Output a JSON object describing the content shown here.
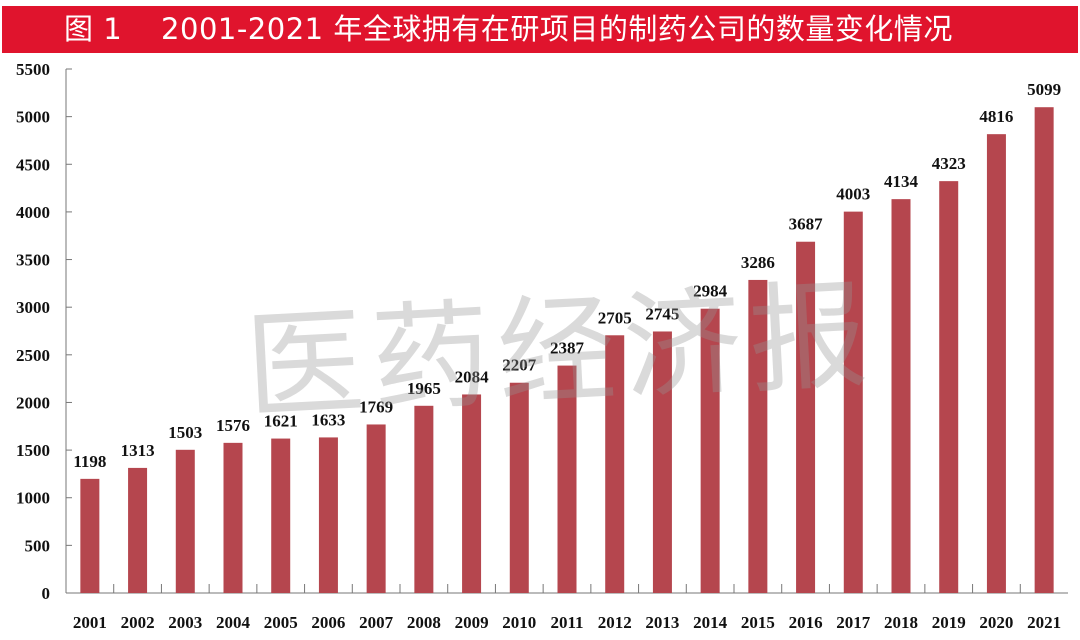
{
  "title": "图 1    2001-2021 年全球拥有在研项目的制药公司的数量变化情况",
  "watermark": "医药经济报",
  "chart_data": {
    "type": "bar",
    "title": "图 1    2001-2021 年全球拥有在研项目的制药公司的数量变化情况",
    "xlabel": "",
    "ylabel": "",
    "categories": [
      "2001",
      "2002",
      "2003",
      "2004",
      "2005",
      "2006",
      "2007",
      "2008",
      "2009",
      "2010",
      "2011",
      "2012",
      "2013",
      "2014",
      "2015",
      "2016",
      "2017",
      "2018",
      "2019",
      "2020",
      "2021"
    ],
    "values": [
      1198,
      1313,
      1503,
      1576,
      1621,
      1633,
      1769,
      1965,
      2084,
      2207,
      2387,
      2705,
      2745,
      2984,
      3286,
      3687,
      4003,
      4134,
      4323,
      4816,
      5099
    ],
    "ylim": [
      0,
      5500
    ],
    "yticks": [
      0,
      500,
      1000,
      1500,
      2000,
      2500,
      3000,
      3500,
      4000,
      4500,
      5000,
      5500
    ],
    "grid": false,
    "bar_color": "#b5464e",
    "title_bg": "#e0142d"
  }
}
